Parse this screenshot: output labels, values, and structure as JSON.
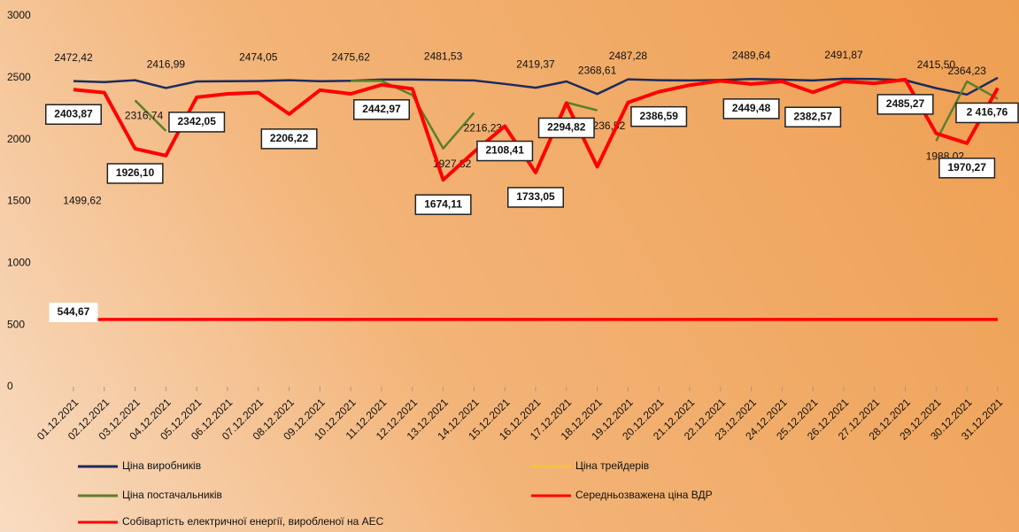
{
  "chart_data": {
    "type": "line",
    "categories": [
      "01.12.2021",
      "02.12.2021",
      "03.12.2021",
      "04.12.2021",
      "05.12.2021",
      "06.12.2021",
      "07.12.2021",
      "08.12.2021",
      "09.12.2021",
      "10.12.2021",
      "11.12.2021",
      "12.12.2021",
      "13.12.2021",
      "14.12.2021",
      "15.12.2021",
      "16.12.2021",
      "17.12.2021",
      "18.12.2021",
      "19.12.2021",
      "20.12.2021",
      "21.12.2021",
      "22.12.2021",
      "23.12.2021",
      "24.12.2021",
      "25.12.2021",
      "26.12.2021",
      "27.12.2021",
      "28.12.2021",
      "29.12.2021",
      "30.12.2021",
      "31.12.2021"
    ],
    "ylim": [
      0,
      3000
    ],
    "yticks": [
      0,
      500,
      1000,
      1500,
      2000,
      2500,
      3000
    ],
    "grid": false,
    "series": [
      {
        "name": "Ціна виробників",
        "color": "#1c2b5e",
        "values": [
          2472.42,
          2465,
          2480,
          2416.99,
          2470,
          2472,
          2474.05,
          2480,
          2472,
          2475.62,
          2485,
          2485,
          2481.53,
          2478,
          2450,
          2419.37,
          2470,
          2368.61,
          2487.28,
          2480,
          2478,
          2482,
          2489.64,
          2485,
          2478,
          2491.87,
          2490,
          2480,
          2415.5,
          2364.23,
          2500
        ],
        "value_labels": [
          "2472,42",
          null,
          null,
          "2416,99",
          null,
          null,
          "2474,05",
          null,
          null,
          "2475,62",
          null,
          null,
          "2481,53",
          null,
          null,
          "2419,37",
          null,
          "2368,61",
          "2487,28",
          null,
          null,
          null,
          "2489,64",
          null,
          null,
          "2491,87",
          null,
          null,
          "2415,50",
          "2364,23",
          null
        ]
      },
      {
        "name": "Ціна трейдерів",
        "color": "#f5c342",
        "values": [
          null,
          null,
          null,
          null,
          null,
          null,
          null,
          null,
          null,
          null,
          null,
          null,
          null,
          null,
          null,
          null,
          null,
          null,
          null,
          null,
          null,
          null,
          null,
          null,
          null,
          null,
          null,
          null,
          null,
          null,
          null
        ]
      },
      {
        "name": "Ціна постачальників",
        "color": "#5b7f2c",
        "values": [
          1499.62,
          null,
          2316.74,
          2070,
          null,
          null,
          null,
          null,
          null,
          2475,
          2475,
          2360,
          1927.82,
          2216.23,
          null,
          null,
          2300,
          2236.52,
          null,
          null,
          null,
          null,
          null,
          null,
          null,
          null,
          null,
          null,
          1988.02,
          2470,
          2330
        ],
        "value_labels": [
          "1499,62",
          null,
          "2316,74",
          null,
          null,
          null,
          null,
          null,
          null,
          null,
          null,
          null,
          "1927,82",
          "2216,23",
          null,
          null,
          null,
          "2236,52",
          null,
          null,
          null,
          null,
          null,
          null,
          null,
          null,
          null,
          null,
          "1988,02",
          null,
          null
        ]
      },
      {
        "name": "Середньозважена ціна ВДР",
        "color": "#ff0000",
        "values": [
          2403.87,
          2380,
          1926.1,
          1870,
          2342.05,
          2370,
          2380,
          2206.22,
          2400,
          2370,
          2442.97,
          2410,
          1674.11,
          1900,
          2108.41,
          1733.05,
          2294.82,
          1780,
          2300,
          2386.59,
          2440,
          2475,
          2449.48,
          2470,
          2382.57,
          2470,
          2455,
          2485.27,
          2050,
          1970.27,
          2416.76
        ],
        "value_labels": [
          "2403,87",
          null,
          "1926,10",
          null,
          "2342,05",
          null,
          null,
          "2206,22",
          null,
          null,
          "2442,97",
          null,
          "1674,11",
          null,
          "2108,41",
          "1733,05",
          "2294,82",
          null,
          null,
          "2386,59",
          null,
          null,
          "2449,48",
          null,
          "2382,57",
          null,
          null,
          "2485,27",
          null,
          "1970,27",
          "2 416,76"
        ]
      },
      {
        "name": "Собівартість електричної енергії, виробленої на АЕС",
        "color": "#ff0000",
        "values": [
          544.67,
          544.67,
          544.67,
          544.67,
          544.67,
          544.67,
          544.67,
          544.67,
          544.67,
          544.67,
          544.67,
          544.67,
          544.67,
          544.67,
          544.67,
          544.67,
          544.67,
          544.67,
          544.67,
          544.67,
          544.67,
          544.67,
          544.67,
          544.67,
          544.67,
          544.67,
          544.67,
          544.67,
          544.67,
          544.67,
          544.67
        ],
        "value_labels": [
          "544,67",
          null,
          null,
          null,
          null,
          null,
          null,
          null,
          null,
          null,
          null,
          null,
          null,
          null,
          null,
          null,
          null,
          null,
          null,
          null,
          null,
          null,
          null,
          null,
          null,
          null,
          null,
          null,
          null,
          null,
          null
        ]
      }
    ]
  }
}
